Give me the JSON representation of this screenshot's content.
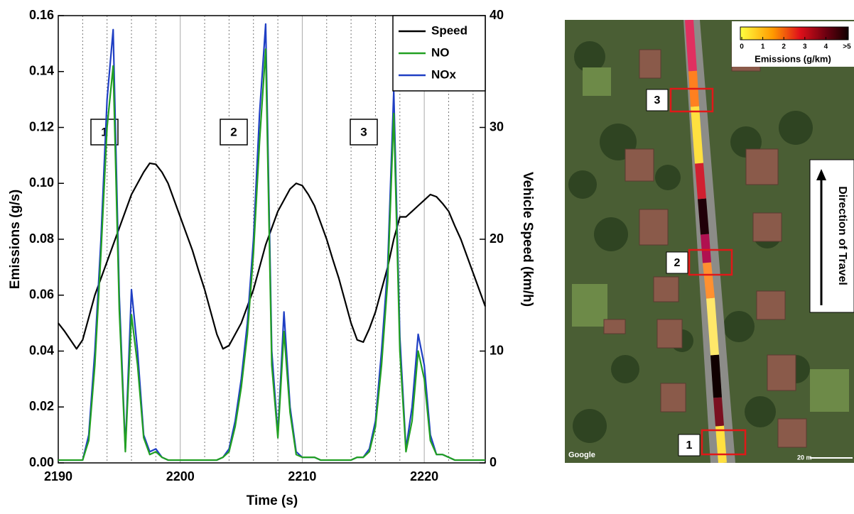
{
  "chart_data": {
    "type": "line",
    "x_label": "Time (s)",
    "y_label": "Emissions (g/s)",
    "y2_label": "Vehicle Speed (km/h)",
    "xlim": [
      2190,
      2225
    ],
    "xticks": [
      2190,
      2200,
      2210,
      2220
    ],
    "xticks_minor": [
      2192,
      2194,
      2196,
      2198,
      2202,
      2204,
      2206,
      2208,
      2212,
      2214,
      2216,
      2218,
      2222,
      2224
    ],
    "ylim": [
      0,
      0.16
    ],
    "yticks": [
      {
        "value": 0,
        "label": "0.00"
      },
      {
        "value": 0.02,
        "label": "0.02"
      },
      {
        "value": 0.04,
        "label": "0.04"
      },
      {
        "value": 0.06,
        "label": "0.06"
      },
      {
        "value": 0.08,
        "label": "0.08"
      },
      {
        "value": 0.1,
        "label": "0.10"
      },
      {
        "value": 0.12,
        "label": "0.12"
      },
      {
        "value": 0.14,
        "label": "0.14"
      },
      {
        "value": 0.16,
        "label": "0.16"
      }
    ],
    "y2lim": [
      0,
      40
    ],
    "y2ticks": [
      0,
      10,
      20,
      30,
      40
    ],
    "grid": true,
    "legend": "upper right",
    "annotations": [
      "1",
      "2",
      "3"
    ],
    "x": [
      2190,
      2190.5,
      2191,
      2191.5,
      2192,
      2192.5,
      2193,
      2193.5,
      2194,
      2194.5,
      2195,
      2195.5,
      2196,
      2196.5,
      2197,
      2197.5,
      2198,
      2198.5,
      2199,
      2199.5,
      2200,
      2200.5,
      2201,
      2201.5,
      2202,
      2202.5,
      2203,
      2203.5,
      2204,
      2204.5,
      2205,
      2205.5,
      2206,
      2206.5,
      2207,
      2207.5,
      2208,
      2208.5,
      2209,
      2209.5,
      2210,
      2210.5,
      2211,
      2211.5,
      2212,
      2212.5,
      2213,
      2213.5,
      2214,
      2214.5,
      2215,
      2215.5,
      2216,
      2216.5,
      2217,
      2217.5,
      2218,
      2218.5,
      2219,
      2219.5,
      2220,
      2220.5,
      2221,
      2221.5,
      2222,
      2222.5,
      2223,
      2223.5,
      2224,
      2224.5,
      2225
    ],
    "series": [
      {
        "name": "Speed",
        "color": "#000000",
        "axis": "y2",
        "values": [
          12.5,
          11.8,
          11,
          10.2,
          11,
          13,
          15,
          16.5,
          18,
          19.5,
          21,
          22.5,
          24,
          25,
          26,
          26.8,
          26.7,
          26,
          25,
          23.5,
          22,
          20.5,
          19,
          17.2,
          15.5,
          13.5,
          11.5,
          10.2,
          10.5,
          11.5,
          12.5,
          14,
          15.5,
          17.5,
          19.5,
          21,
          22.5,
          23.5,
          24.5,
          25,
          24.8,
          24,
          23,
          21.5,
          20,
          18.2,
          16.5,
          14.5,
          12.5,
          11,
          10.8,
          12,
          13.5,
          15.5,
          17.5,
          20,
          22,
          22,
          22.5,
          23,
          23.5,
          24,
          23.8,
          23.2,
          22.5,
          21.2,
          20,
          18.5,
          17,
          15.5,
          14
        ]
      },
      {
        "name": "NOx",
        "color": "#1f3fc4",
        "values": [
          0.001,
          0.001,
          0.001,
          0.001,
          0.001,
          0.01,
          0.04,
          0.08,
          0.13,
          0.155,
          0.06,
          0.005,
          0.062,
          0.04,
          0.01,
          0.004,
          0.005,
          0.002,
          0.001,
          0.001,
          0.001,
          0.001,
          0.001,
          0.001,
          0.001,
          0.001,
          0.001,
          0.002,
          0.005,
          0.015,
          0.03,
          0.05,
          0.08,
          0.125,
          0.157,
          0.04,
          0.01,
          0.054,
          0.02,
          0.004,
          0.002,
          0.002,
          0.002,
          0.001,
          0.001,
          0.001,
          0.001,
          0.001,
          0.001,
          0.002,
          0.002,
          0.005,
          0.015,
          0.04,
          0.07,
          0.133,
          0.045,
          0.005,
          0.02,
          0.046,
          0.035,
          0.01,
          0.003,
          0.003,
          0.002,
          0.001,
          0.001,
          0.001,
          0.001,
          0.001,
          0.001
        ]
      },
      {
        "name": "NO",
        "color": "#22a022",
        "values": [
          0.001,
          0.001,
          0.001,
          0.001,
          0.001,
          0.008,
          0.035,
          0.075,
          0.12,
          0.142,
          0.055,
          0.004,
          0.053,
          0.035,
          0.009,
          0.003,
          0.004,
          0.002,
          0.001,
          0.001,
          0.001,
          0.001,
          0.001,
          0.001,
          0.001,
          0.001,
          0.001,
          0.002,
          0.004,
          0.013,
          0.027,
          0.046,
          0.075,
          0.115,
          0.148,
          0.035,
          0.009,
          0.047,
          0.018,
          0.003,
          0.002,
          0.002,
          0.002,
          0.001,
          0.001,
          0.001,
          0.001,
          0.001,
          0.001,
          0.002,
          0.002,
          0.004,
          0.013,
          0.035,
          0.065,
          0.125,
          0.04,
          0.004,
          0.015,
          0.04,
          0.03,
          0.008,
          0.003,
          0.003,
          0.002,
          0.001,
          0.001,
          0.001,
          0.001,
          0.001,
          0.001
        ]
      }
    ]
  },
  "map_panel": {
    "labels": [
      "3",
      "2",
      "1"
    ],
    "colorbar": {
      "ticks": [
        0,
        1,
        2,
        3,
        4,
        {
          "value": 5,
          "label": ">5"
        }
      ],
      "label": "Emissions (g/km)"
    },
    "direction_label": "Direction of Travel",
    "attribution": "Google",
    "scale_label": "20 m"
  }
}
